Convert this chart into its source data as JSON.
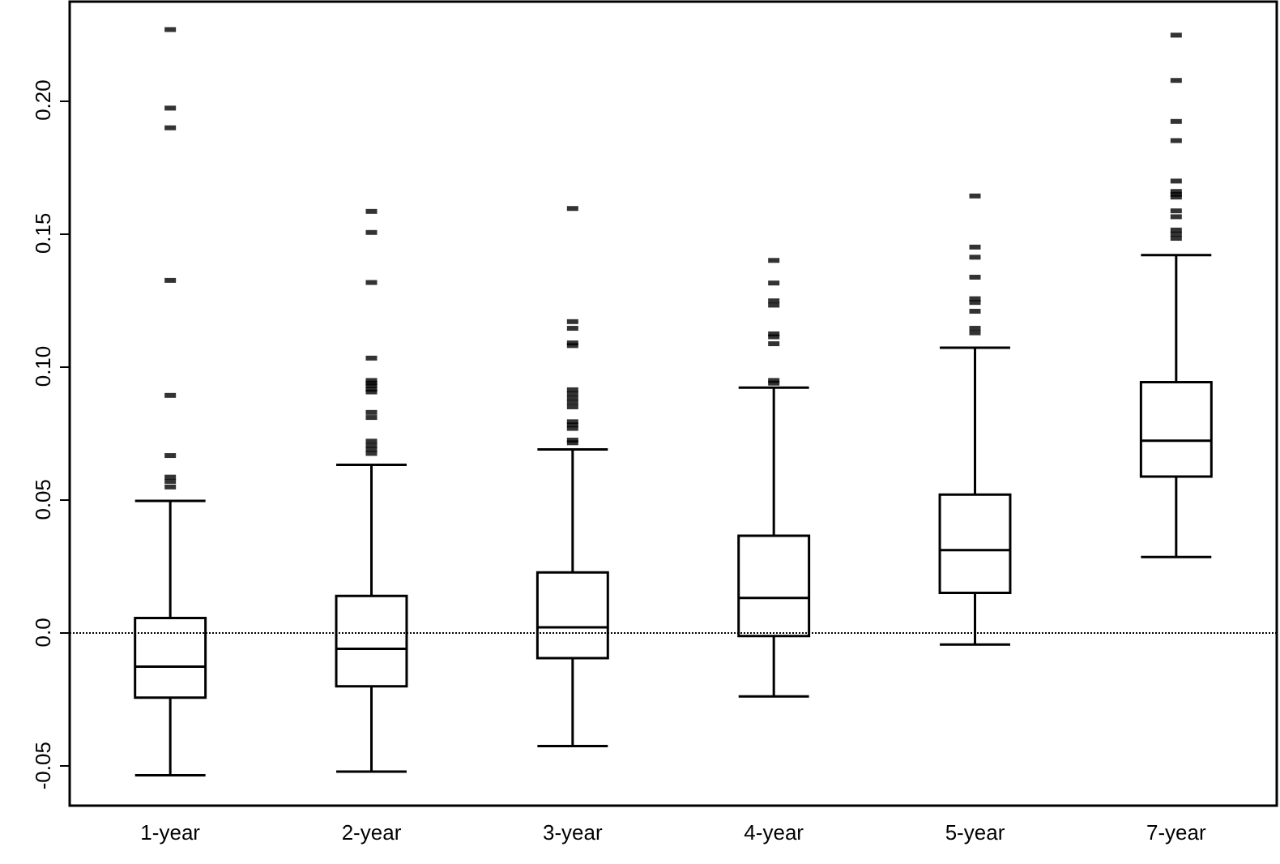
{
  "chart_data": {
    "type": "box",
    "categories": [
      "1-year",
      "2-year",
      "3-year",
      "4-year",
      "5-year",
      "7-year"
    ],
    "boxes": [
      {
        "low": -0.0536,
        "q1": -0.0244,
        "median": -0.0128,
        "q3": 0.0055,
        "high": 0.0495,
        "outliers": [
          0.2265,
          0.197,
          0.1896,
          0.1323,
          0.0891,
          0.0665,
          0.0584,
          0.0568,
          0.0547
        ]
      },
      {
        "low": -0.0522,
        "q1": -0.0202,
        "median": -0.0061,
        "q3": 0.0138,
        "high": 0.063,
        "outliers": [
          0.1582,
          0.1503,
          0.1315,
          0.1031,
          0.0947,
          0.0937,
          0.0927,
          0.0914,
          0.0904,
          0.0827,
          0.0808,
          0.0719,
          0.0703,
          0.0688,
          0.0673
        ]
      },
      {
        "low": -0.0426,
        "q1": -0.0096,
        "median": 0.002,
        "q3": 0.0226,
        "high": 0.0688,
        "outliers": [
          0.1593,
          0.1168,
          0.1143,
          0.1088,
          0.1078,
          0.0912,
          0.0897,
          0.0881,
          0.0865,
          0.0848,
          0.0792,
          0.078,
          0.0767,
          0.0723,
          0.0713
        ]
      },
      {
        "low": -0.024,
        "q1": -0.0013,
        "median": 0.013,
        "q3": 0.0364,
        "high": 0.092,
        "outliers": [
          0.1398,
          0.1313,
          0.1246,
          0.123,
          0.1122,
          0.1111,
          0.1085,
          0.0947,
          0.0937
        ]
      },
      {
        "low": -0.0045,
        "q1": 0.0149,
        "median": 0.031,
        "q3": 0.0518,
        "high": 0.107,
        "outliers": [
          0.164,
          0.1448,
          0.141,
          0.1335,
          0.1254,
          0.124,
          0.1207,
          0.1143,
          0.1126
        ]
      },
      {
        "low": 0.0284,
        "q1": 0.0586,
        "median": 0.0721,
        "q3": 0.0941,
        "high": 0.1418,
        "outliers": [
          0.2244,
          0.2074,
          0.192,
          0.1848,
          0.1696,
          0.1657,
          0.1646,
          0.1636,
          0.1584,
          0.1562,
          0.1512,
          0.1497,
          0.1481
        ]
      }
    ],
    "color": "#000000",
    "ylim": [
      -0.065,
      0.237
    ],
    "yticks": [
      -0.05,
      {
        "value": 0,
        "label": "0.0"
      },
      0.05,
      {
        "value": 0.1,
        "label": "0.10"
      },
      0.15,
      {
        "value": 0.2,
        "label": "0.20"
      }
    ],
    "ref_lines": [
      {
        "axis": "y",
        "value": 0,
        "line_style": "dotted",
        "color": "#000000"
      }
    ],
    "grid": false
  }
}
